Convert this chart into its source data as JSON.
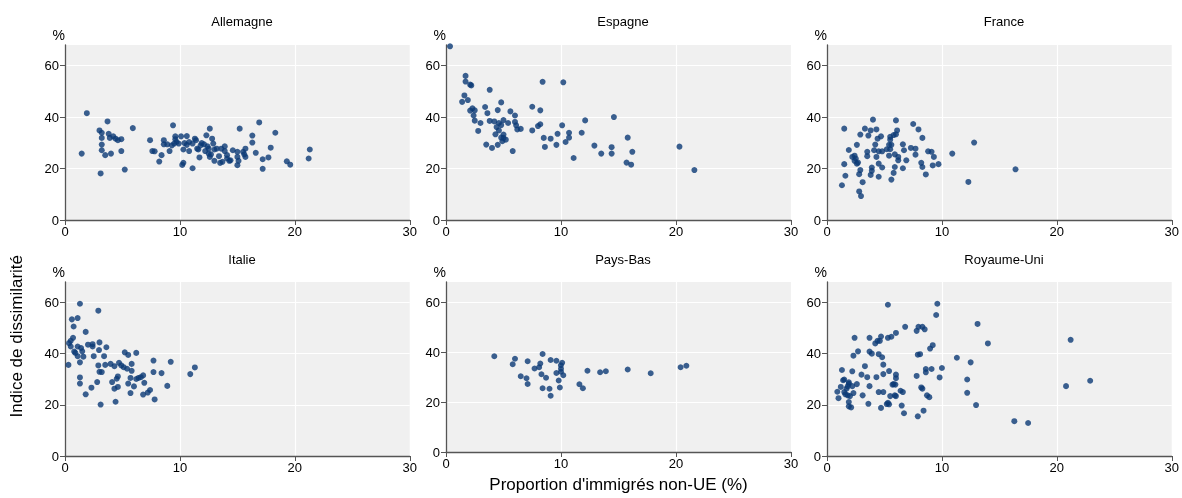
{
  "chart_data": [
    {
      "type": "scatter",
      "title": "Allemagne",
      "ylabel": "%",
      "color": "#0b3a75",
      "marker": "circle",
      "grid": true,
      "xlim": [
        0,
        30
      ],
      "xticks": [
        0,
        10,
        20,
        30
      ],
      "ylim": [
        0,
        68
      ],
      "yticks": [
        0,
        20,
        40,
        60
      ],
      "x": [
        1.45,
        1.9,
        3.0,
        3.2,
        3.2,
        3.2,
        3.2,
        3.1,
        3.5,
        3.7,
        3.8,
        3.9,
        4.2,
        4.4,
        4.0,
        4.6,
        4.9,
        4.9,
        5.2,
        5.9,
        7.4,
        7.6,
        7.8,
        8.2,
        8.4,
        8.6,
        8.6,
        8.9,
        9.1,
        9.3,
        9.4,
        9.5,
        9.6,
        9.6,
        9.7,
        9.9,
        10.1,
        10.3,
        10.3,
        10.2,
        10.4,
        10.6,
        10.6,
        10.8,
        10.8,
        11.1,
        11.1,
        11.3,
        11.4,
        11.5,
        11.6,
        11.7,
        11.8,
        11.9,
        12.1,
        12.2,
        12.3,
        12.4,
        12.5,
        12.6,
        12.5,
        12.6,
        12.7,
        12.8,
        12.9,
        13.0,
        13.0,
        13.2,
        13.4,
        13.5,
        13.6,
        13.7,
        13.9,
        13.9,
        14.1,
        14.1,
        14.3,
        14.4,
        14.6,
        15.0,
        15.0,
        15.0,
        15.1,
        15.2,
        15.5,
        15.6,
        15.7,
        15.7,
        16.3,
        16.3,
        16.6,
        16.9,
        17.2,
        17.2,
        17.7,
        17.9,
        18.3,
        19.3,
        19.6,
        21.2,
        21.3
      ],
      "values": [
        25.8,
        41.5,
        34.8,
        33.9,
        31.9,
        29.3,
        27.1,
        18.1,
        25.2,
        38.3,
        33.5,
        31.9,
        32.5,
        31.6,
        25.8,
        31.0,
        31.4,
        26.8,
        19.6,
        35.7,
        31.0,
        26.8,
        26.7,
        22.7,
        25.2,
        31.0,
        29.4,
        29.4,
        26.8,
        29.0,
        36.8,
        29.7,
        32.5,
        31.4,
        30.3,
        29.7,
        32.5,
        27.4,
        22.2,
        21.4,
        29.9,
        32.6,
        29.2,
        26.8,
        30.3,
        20.1,
        29.7,
        31.6,
        31.0,
        27.7,
        27.4,
        24.3,
        29.0,
        29.9,
        29.4,
        26.8,
        32.9,
        28.6,
        27.7,
        35.5,
        25.8,
        24.5,
        25.5,
        31.6,
        29.7,
        23.0,
        27.4,
        27.7,
        24.8,
        22.2,
        27.7,
        22.6,
        28.6,
        26.8,
        25.2,
        23.9,
        23.0,
        23.2,
        27.1,
        26.5,
        24.5,
        21.3,
        23.0,
        35.5,
        26.5,
        25.5,
        27.7,
        24.5,
        30.1,
        32.8,
        26.1,
        37.9,
        23.6,
        19.9,
        24.3,
        28.1,
        33.9,
        22.8,
        21.5,
        23.9,
        27.4
      ]
    },
    {
      "type": "scatter",
      "title": "Espagne",
      "ylabel": "%",
      "color": "#0b3a75",
      "marker": "circle",
      "grid": true,
      "xlim": [
        0,
        30
      ],
      "xticks": [
        0,
        10,
        20,
        30
      ],
      "ylim": [
        0,
        68
      ],
      "yticks": [
        0,
        20,
        40,
        60
      ],
      "x": [
        0.35,
        1.4,
        1.6,
        1.7,
        1.7,
        1.9,
        2.1,
        2.2,
        2.1,
        2.3,
        2.4,
        2.5,
        2.5,
        2.8,
        3.0,
        3.4,
        3.5,
        3.6,
        3.8,
        3.8,
        4.0,
        4.2,
        4.3,
        4.4,
        4.5,
        4.5,
        4.6,
        4.6,
        4.8,
        4.8,
        4.8,
        4.9,
        5.0,
        5.0,
        5.0,
        5.2,
        5.4,
        5.6,
        5.8,
        6.0,
        6.0,
        6.1,
        6.2,
        6.5,
        7.5,
        7.5,
        8.0,
        8.2,
        8.2,
        8.4,
        8.5,
        8.6,
        9.1,
        9.6,
        9.7,
        10.1,
        10.2,
        10.4,
        10.7,
        10.7,
        11.8,
        11.1,
        12.1,
        12.9,
        13.5,
        14.4,
        14.4,
        14.6,
        15.8,
        15.7,
        16.1,
        16.2,
        20.3,
        21.6
      ],
      "values": [
        67.5,
        45.9,
        48.4,
        56.0,
        53.8,
        46.6,
        52.6,
        52.3,
        42.5,
        43.4,
        40.6,
        42.6,
        38.6,
        34.6,
        37.7,
        43.9,
        29.3,
        41.5,
        50.6,
        38.5,
        28.0,
        38.3,
        33.3,
        36.1,
        42.7,
        29.2,
        37.7,
        34.8,
        36.9,
        45.7,
        32.0,
        30.6,
        38.8,
        33.2,
        31.9,
        31.2,
        37.7,
        42.2,
        26.8,
        40.6,
        38.1,
        36.8,
        35.2,
        35.4,
        44.0,
        34.8,
        36.5,
        37.2,
        42.6,
        53.7,
        31.9,
        28.4,
        31.6,
        29.2,
        33.5,
        36.8,
        53.5,
        30.3,
        33.9,
        32.0,
        33.9,
        24.1,
        38.7,
        28.9,
        25.8,
        28.3,
        25.8,
        40.0,
        32.0,
        22.3,
        21.5,
        26.5,
        28.5,
        19.4
      ]
    },
    {
      "type": "scatter",
      "title": "France",
      "ylabel": "%",
      "color": "#0b3a75",
      "marker": "circle",
      "grid": true,
      "xlim": [
        0,
        30
      ],
      "xticks": [
        0,
        10,
        20,
        30
      ],
      "ylim": [
        0,
        68
      ],
      "yticks": [
        0,
        20,
        40,
        60
      ],
      "x": [
        1.3,
        1.5,
        1.5,
        1.6,
        1.9,
        2.2,
        2.4,
        2.4,
        2.5,
        2.6,
        2.6,
        2.7,
        2.8,
        2.8,
        2.9,
        2.96,
        2.9,
        3.1,
        3.3,
        3.5,
        3.5,
        3.6,
        3.8,
        3.8,
        3.9,
        3.9,
        4.0,
        4.1,
        4.2,
        4.3,
        4.3,
        4.4,
        4.5,
        4.5,
        4.5,
        4.7,
        4.8,
        4.8,
        5.2,
        5.4,
        5.4,
        5.5,
        5.5,
        5.5,
        5.6,
        5.6,
        5.8,
        5.8,
        5.9,
        6.0,
        5.9,
        6.0,
        6.1,
        6.2,
        6.2,
        6.6,
        6.6,
        6.7,
        6.9,
        7.3,
        7.5,
        7.7,
        7.7,
        7.96,
        8.2,
        8.3,
        8.3,
        8.6,
        8.8,
        9.1,
        9.2,
        9.3,
        9.7,
        10.9,
        12.3,
        12.8,
        16.4
      ],
      "values": [
        13.5,
        35.5,
        21.7,
        17.2,
        27.2,
        24.5,
        25.0,
        23.0,
        23.9,
        21.9,
        29.2,
        22.3,
        17.8,
        11.1,
        33.2,
        9.3,
        19.4,
        14.7,
        35.5,
        26.5,
        24.8,
        32.8,
        34.8,
        17.5,
        20.4,
        19.1,
        39.0,
        27.1,
        29.3,
        35.2,
        24.5,
        31.6,
        21.9,
        16.8,
        26.7,
        32.5,
        26.7,
        20.4,
        27.5,
        25.0,
        29.2,
        31.2,
        32.3,
        27.5,
        29.2,
        15.7,
        18.3,
        33.0,
        25.5,
        33.3,
        20.6,
        38.7,
        34.8,
        23.2,
        24.5,
        29.4,
        20.1,
        27.1,
        23.2,
        28.0,
        37.3,
        27.7,
        25.4,
        35.2,
        22.2,
        20.6,
        31.9,
        17.7,
        26.7,
        26.5,
        21.2,
        24.5,
        21.7,
        25.8,
        14.8,
        30.1,
        19.7
      ]
    },
    {
      "type": "scatter",
      "title": "Italie",
      "ylabel": "%",
      "annotations": [
        "Indice de dissimilarité"
      ],
      "color": "#0b3a75",
      "marker": "circle",
      "grid": true,
      "xlim": [
        0,
        30
      ],
      "xticks": [
        0,
        10,
        20,
        30
      ],
      "ylim": [
        0,
        68
      ],
      "yticks": [
        0,
        20,
        40,
        60
      ],
      "x": [
        0.3,
        0.35,
        0.5,
        0.5,
        0.6,
        0.7,
        0.75,
        0.8,
        0.9,
        1.1,
        1.1,
        1.1,
        1.3,
        1.3,
        1.3,
        1.3,
        1.4,
        1.5,
        1.6,
        1.8,
        1.8,
        2.0,
        2.3,
        2.4,
        2.4,
        2.5,
        2.8,
        2.9,
        2.9,
        2.96,
        3.0,
        3.0,
        3.1,
        3.2,
        3.4,
        3.5,
        3.6,
        3.97,
        4.1,
        4.3,
        4.3,
        4.4,
        4.5,
        4.6,
        4.6,
        4.7,
        4.9,
        5.1,
        5.2,
        5.4,
        5.5,
        5.5,
        5.7,
        5.7,
        5.8,
        5.8,
        6.0,
        6.2,
        6.2,
        6.4,
        6.6,
        6.8,
        6.8,
        6.9,
        7.2,
        7.4,
        7.7,
        7.7,
        7.8,
        8.4,
        8.9,
        9.2,
        10.9,
        11.3
      ],
      "values": [
        35.6,
        44.1,
        45.0,
        42.8,
        53.4,
        46.2,
        50.6,
        40.8,
        40.3,
        42.8,
        53.9,
        39.0,
        36.6,
        59.5,
        30.7,
        28.3,
        42.2,
        40.9,
        38.8,
        48.5,
        24.1,
        43.5,
        26.7,
        43.7,
        42.8,
        39.0,
        28.9,
        56.8,
        35.4,
        41.4,
        44.4,
        32.9,
        20.1,
        32.8,
        39.0,
        35.6,
        42.5,
        36.0,
        28.9,
        26.3,
        35.1,
        21.2,
        30.2,
        27.0,
        31.1,
        36.4,
        35.4,
        34.7,
        40.5,
        34.1,
        28.3,
        39.5,
        24.6,
        30.5,
        36.0,
        33.3,
        27.2,
        40.3,
        30.1,
        30.5,
        30.8,
        24.0,
        31.5,
        28.6,
        24.8,
        25.8,
        37.3,
        32.8,
        22.1,
        32.4,
        27.4,
        36.8,
        32.0,
        34.6
      ]
    },
    {
      "type": "scatter",
      "title": "Pays-Bas",
      "ylabel": "%",
      "xlabel": "Proportion d'immigrés non-UE (%)",
      "color": "#0b3a75",
      "marker": "circle",
      "grid": true,
      "xlim": [
        0,
        30
      ],
      "xticks": [
        0,
        10,
        20,
        30
      ],
      "ylim": [
        0,
        68
      ],
      "yticks": [
        0,
        20,
        40,
        60
      ],
      "x": [
        4.2,
        5.8,
        6.0,
        6.5,
        7.0,
        7.1,
        7.1,
        7.7,
        8.1,
        8.2,
        8.3,
        8.4,
        8.4,
        8.7,
        9.0,
        9.1,
        9.1,
        9.6,
        9.6,
        9.8,
        9.9,
        9.99,
        10.1,
        10.0,
        10.0,
        10.2,
        11.6,
        11.9,
        12.3,
        13.4,
        13.9,
        15.8,
        17.8,
        20.4,
        20.9
      ],
      "values": [
        38.3,
        35.1,
        37.3,
        30.3,
        29.5,
        36.3,
        27.2,
        33.4,
        33.9,
        35.4,
        31.1,
        25.5,
        39.2,
        29.7,
        25.3,
        22.5,
        36.8,
        31.6,
        36.5,
        28.6,
        25.8,
        34.7,
        35.7,
        33.3,
        32.1,
        30.7,
        27.1,
        25.5,
        32.5,
        31.9,
        32.3,
        33.0,
        31.5,
        33.9,
        34.5
      ]
    },
    {
      "type": "scatter",
      "title": "Royaume-Uni",
      "ylabel": "%",
      "color": "#0b3a75",
      "marker": "circle",
      "grid": true,
      "xlim": [
        0,
        30
      ],
      "xticks": [
        0,
        10,
        20,
        30
      ],
      "ylim": [
        0,
        68
      ],
      "yticks": [
        0,
        20,
        40,
        60
      ],
      "x": [
        0.9,
        1.0,
        1.2,
        1.3,
        1.4,
        1.5,
        1.5,
        1.6,
        1.7,
        1.8,
        1.8,
        1.9,
        1.9,
        1.9,
        1.9,
        2.0,
        2.1,
        2.2,
        2.2,
        2.3,
        2.3,
        2.4,
        2.6,
        2.7,
        3.0,
        3.1,
        3.3,
        3.5,
        3.6,
        3.7,
        3.7,
        3.7,
        3.9,
        4.2,
        4.3,
        4.4,
        4.5,
        4.5,
        4.6,
        4.7,
        4.7,
        4.8,
        4.9,
        4.9,
        4.9,
        5.2,
        5.3,
        5.3,
        5.3,
        5.4,
        5.4,
        5.5,
        5.6,
        5.7,
        5.8,
        5.9,
        5.95,
        6.0,
        6.0,
        6.0,
        6.0,
        6.4,
        6.5,
        6.6,
        6.7,
        6.8,
        7.8,
        7.8,
        7.9,
        7.9,
        7.96,
        8.1,
        8.2,
        8.3,
        8.3,
        8.5,
        8.4,
        8.6,
        8.6,
        8.7,
        8.9,
        8.97,
        9.1,
        9.2,
        9.5,
        9.6,
        9.8,
        10.0,
        11.3,
        12.2,
        12.2,
        12.5,
        12.97,
        13.1,
        14.0,
        16.3,
        17.5,
        20.8,
        21.2,
        22.9
      ],
      "values": [
        25.1,
        22.6,
        27.0,
        33.6,
        29.6,
        29.9,
        25.0,
        24.1,
        26.3,
        27.2,
        23.7,
        28.2,
        28.8,
        21.1,
        19.4,
        23.4,
        19.0,
        33.1,
        27.3,
        39.2,
        24.6,
        46.2,
        28.1,
        40.9,
        31.8,
        23.7,
        35.1,
        30.8,
        20.4,
        40.8,
        27.3,
        46.2,
        40.0,
        44.0,
        30.8,
        45.0,
        39.8,
        25.0,
        45.0,
        46.7,
        18.8,
        38.6,
        35.7,
        25.0,
        32.0,
        20.3,
        59.1,
        20.8,
        46.2,
        33.2,
        20.2,
        23.4,
        46.6,
        27.9,
        28.1,
        23.7,
        27.9,
        30.4,
        31.8,
        48.1,
        23.4,
        25.5,
        19.7,
        25.0,
        16.7,
        50.5,
        31.3,
        48.9,
        15.5,
        39.6,
        50.5,
        39.8,
        26.8,
        26.3,
        50.5,
        49.5,
        17.7,
        34.0,
        32.7,
        23.7,
        23.0,
        42.0,
        34.0,
        43.3,
        55.1,
        59.5,
        30.7,
        34.4,
        38.4,
        29.9,
        24.7,
        36.6,
        19.9,
        51.6,
        44.0,
        13.6,
        12.9,
        27.3,
        45.4,
        29.4
      ]
    }
  ]
}
